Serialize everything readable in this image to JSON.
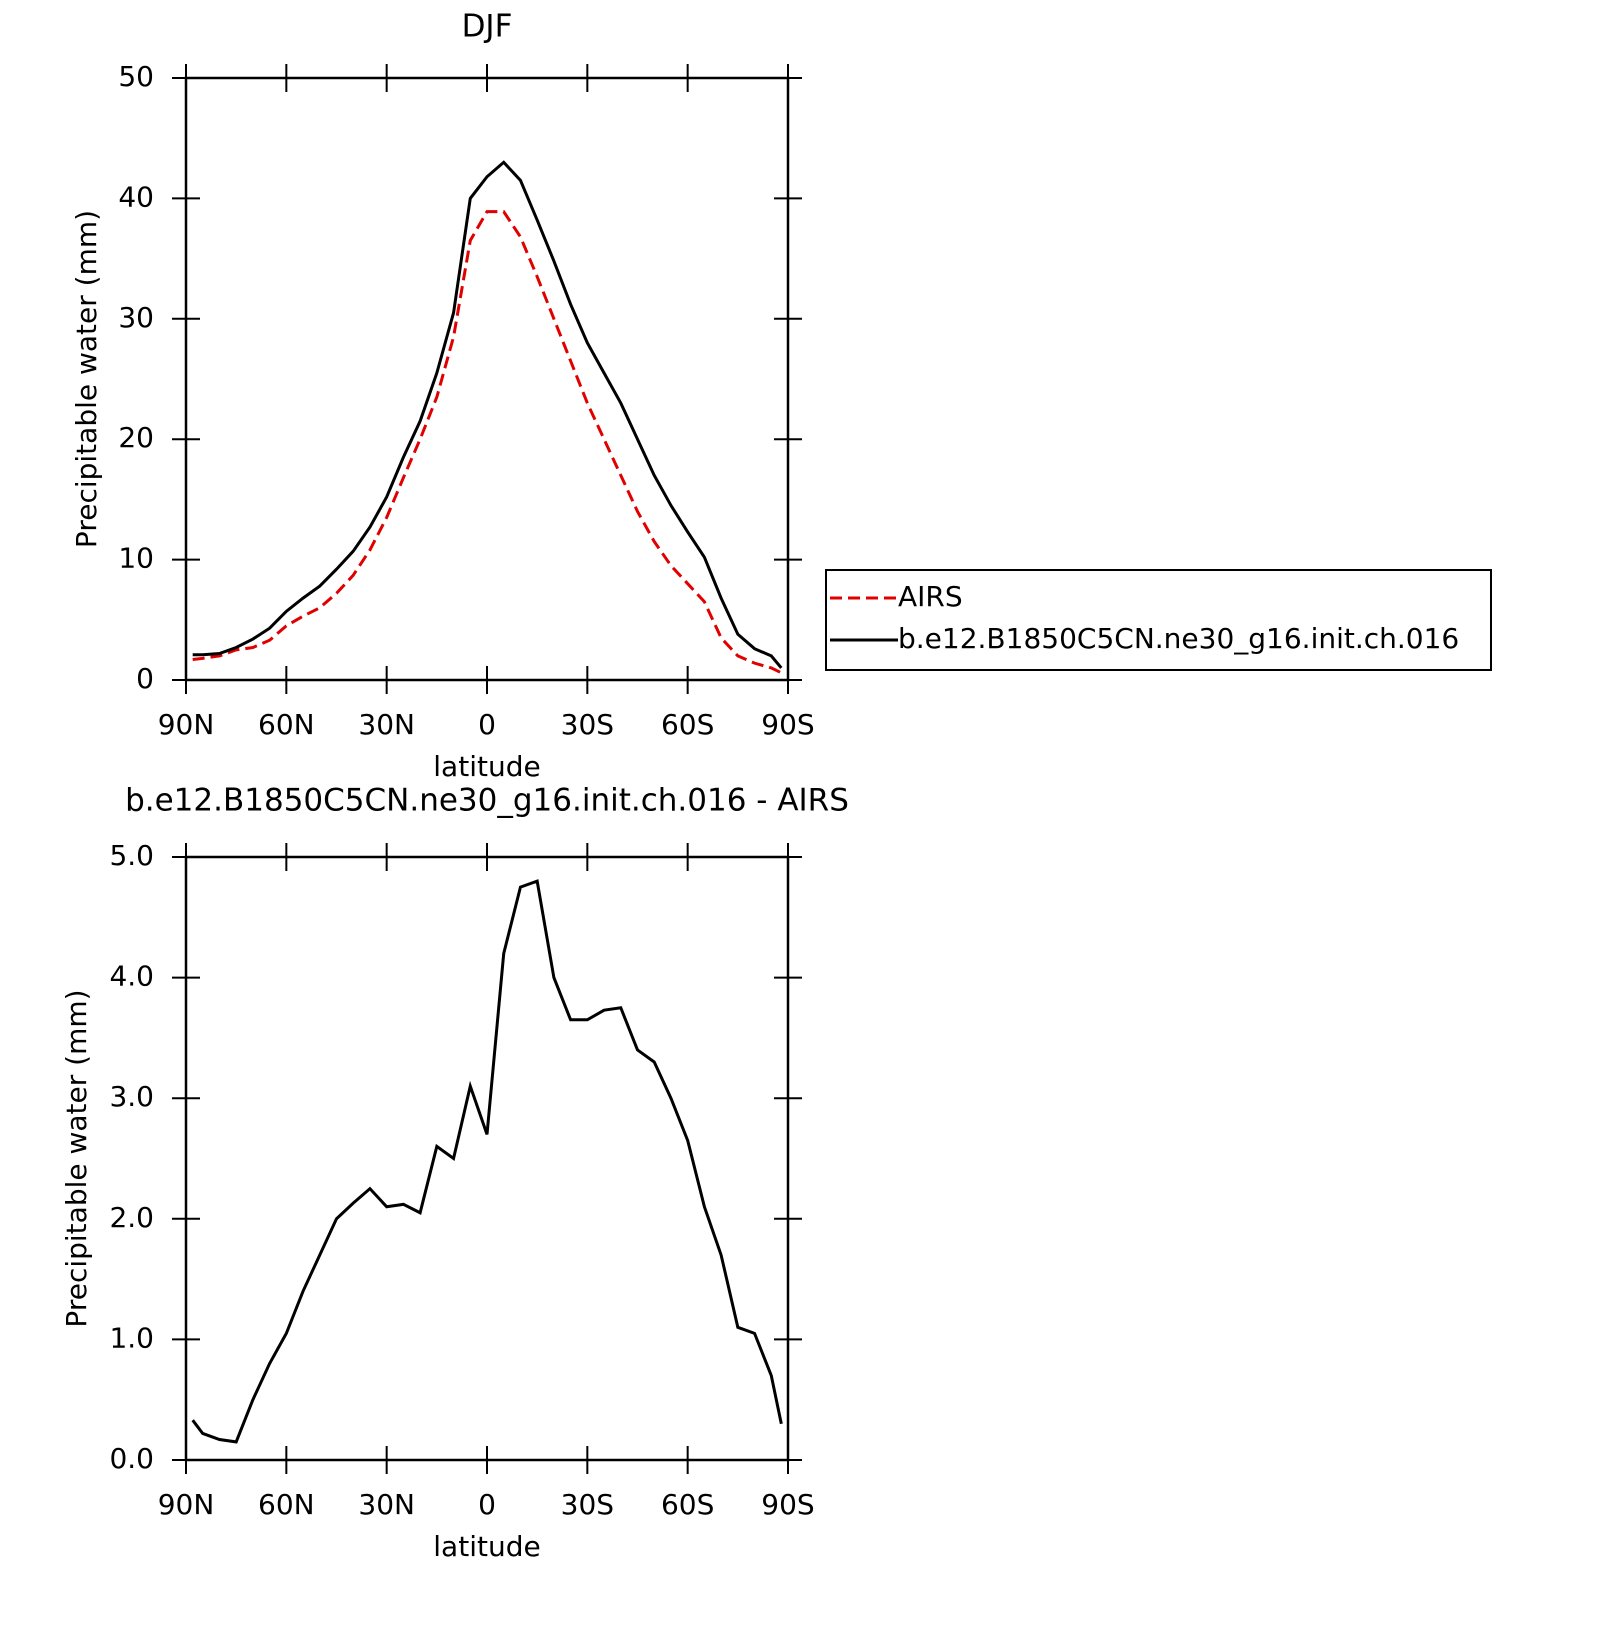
{
  "chart_data": [
    {
      "type": "line",
      "title": "DJF",
      "xlabel": "latitude",
      "ylabel": "Precipitable water (mm)",
      "xlim": [
        90,
        -90
      ],
      "xticks": [
        {
          "value": 90,
          "label": "90N"
        },
        {
          "value": 60,
          "label": "60N"
        },
        {
          "value": 30,
          "label": "30N"
        },
        0,
        {
          "value": -30,
          "label": "30S"
        },
        {
          "value": -60,
          "label": "60S"
        },
        {
          "value": -90,
          "label": "90S"
        }
      ],
      "ylim": [
        0,
        50
      ],
      "yticks": [
        0,
        10,
        20,
        30,
        40,
        50
      ],
      "legend": "right",
      "x": [
        88,
        85,
        80,
        75,
        70,
        65,
        60,
        55,
        50,
        45,
        40,
        35,
        30,
        25,
        20,
        15,
        10,
        5,
        0,
        -5,
        -10,
        -15,
        -20,
        -25,
        -30,
        -35,
        -40,
        -45,
        -50,
        -55,
        -60,
        -65,
        -70,
        -75,
        -80,
        -85,
        -88
      ],
      "series": [
        {
          "name": "AIRS",
          "color": "#e00000",
          "style": "dashed",
          "values": [
            1.7,
            1.8,
            2.0,
            2.5,
            2.7,
            3.3,
            4.5,
            5.3,
            6.0,
            7.2,
            8.7,
            10.8,
            13.5,
            16.8,
            20.0,
            23.5,
            28.5,
            36.5,
            38.9,
            38.9,
            36.8,
            33.5,
            30.0,
            26.5,
            23.0,
            20.0,
            17.0,
            14.0,
            11.5,
            9.5,
            8.0,
            6.5,
            3.5,
            2.0,
            1.4,
            1.0,
            0.6
          ]
        },
        {
          "name": "b.e12.B1850C5CN.ne30_g16.init.ch.016",
          "color": "#000000",
          "style": "solid",
          "values": [
            2.1,
            2.1,
            2.2,
            2.7,
            3.4,
            4.3,
            5.7,
            6.8,
            7.8,
            9.2,
            10.7,
            12.7,
            15.2,
            18.5,
            21.5,
            25.5,
            30.5,
            40.0,
            41.8,
            43.0,
            41.5,
            38.2,
            34.8,
            31.2,
            28.0,
            25.5,
            23.0,
            20.0,
            17.0,
            14.5,
            12.3,
            10.2,
            6.8,
            3.8,
            2.6,
            2.0,
            1.0
          ]
        }
      ]
    },
    {
      "type": "line",
      "title": "b.e12.B1850C5CN.ne30_g16.init.ch.016 - AIRS",
      "xlabel": "latitude",
      "ylabel": "Precipitable water (mm)",
      "xlim": [
        90,
        -90
      ],
      "xticks": [
        {
          "value": 90,
          "label": "90N"
        },
        {
          "value": 60,
          "label": "60N"
        },
        {
          "value": 30,
          "label": "30N"
        },
        0,
        {
          "value": -30,
          "label": "30S"
        },
        {
          "value": -60,
          "label": "60S"
        },
        {
          "value": -90,
          "label": "90S"
        }
      ],
      "ylim": [
        0,
        5
      ],
      "yticks": [
        {
          "value": 0,
          "label": "0.0"
        },
        {
          "value": 1,
          "label": "1.0"
        },
        {
          "value": 2,
          "label": "2.0"
        },
        {
          "value": 3,
          "label": "3.0"
        },
        {
          "value": 4,
          "label": "4.0"
        },
        {
          "value": 5,
          "label": "5.0"
        }
      ],
      "x": [
        88,
        85,
        80,
        75,
        70,
        65,
        60,
        55,
        50,
        45,
        40,
        35,
        30,
        25,
        20,
        15,
        10,
        5,
        0,
        -5,
        -10,
        -15,
        -20,
        -25,
        -30,
        -35,
        -40,
        -45,
        -50,
        -55,
        -60,
        -65,
        -70,
        -75,
        -80,
        -85,
        -88
      ],
      "series": [
        {
          "color": "#000000",
          "style": "solid",
          "values": [
            0.33,
            0.22,
            0.17,
            0.15,
            0.5,
            0.8,
            1.05,
            1.4,
            1.7,
            2.0,
            2.13,
            2.25,
            2.1,
            2.12,
            2.05,
            2.6,
            2.5,
            3.1,
            2.7,
            4.2,
            4.75,
            4.8,
            4.0,
            3.65,
            3.65,
            3.73,
            3.75,
            3.4,
            3.3,
            3.0,
            2.65,
            2.1,
            1.7,
            1.1,
            1.05,
            0.7,
            0.3
          ]
        }
      ]
    }
  ]
}
